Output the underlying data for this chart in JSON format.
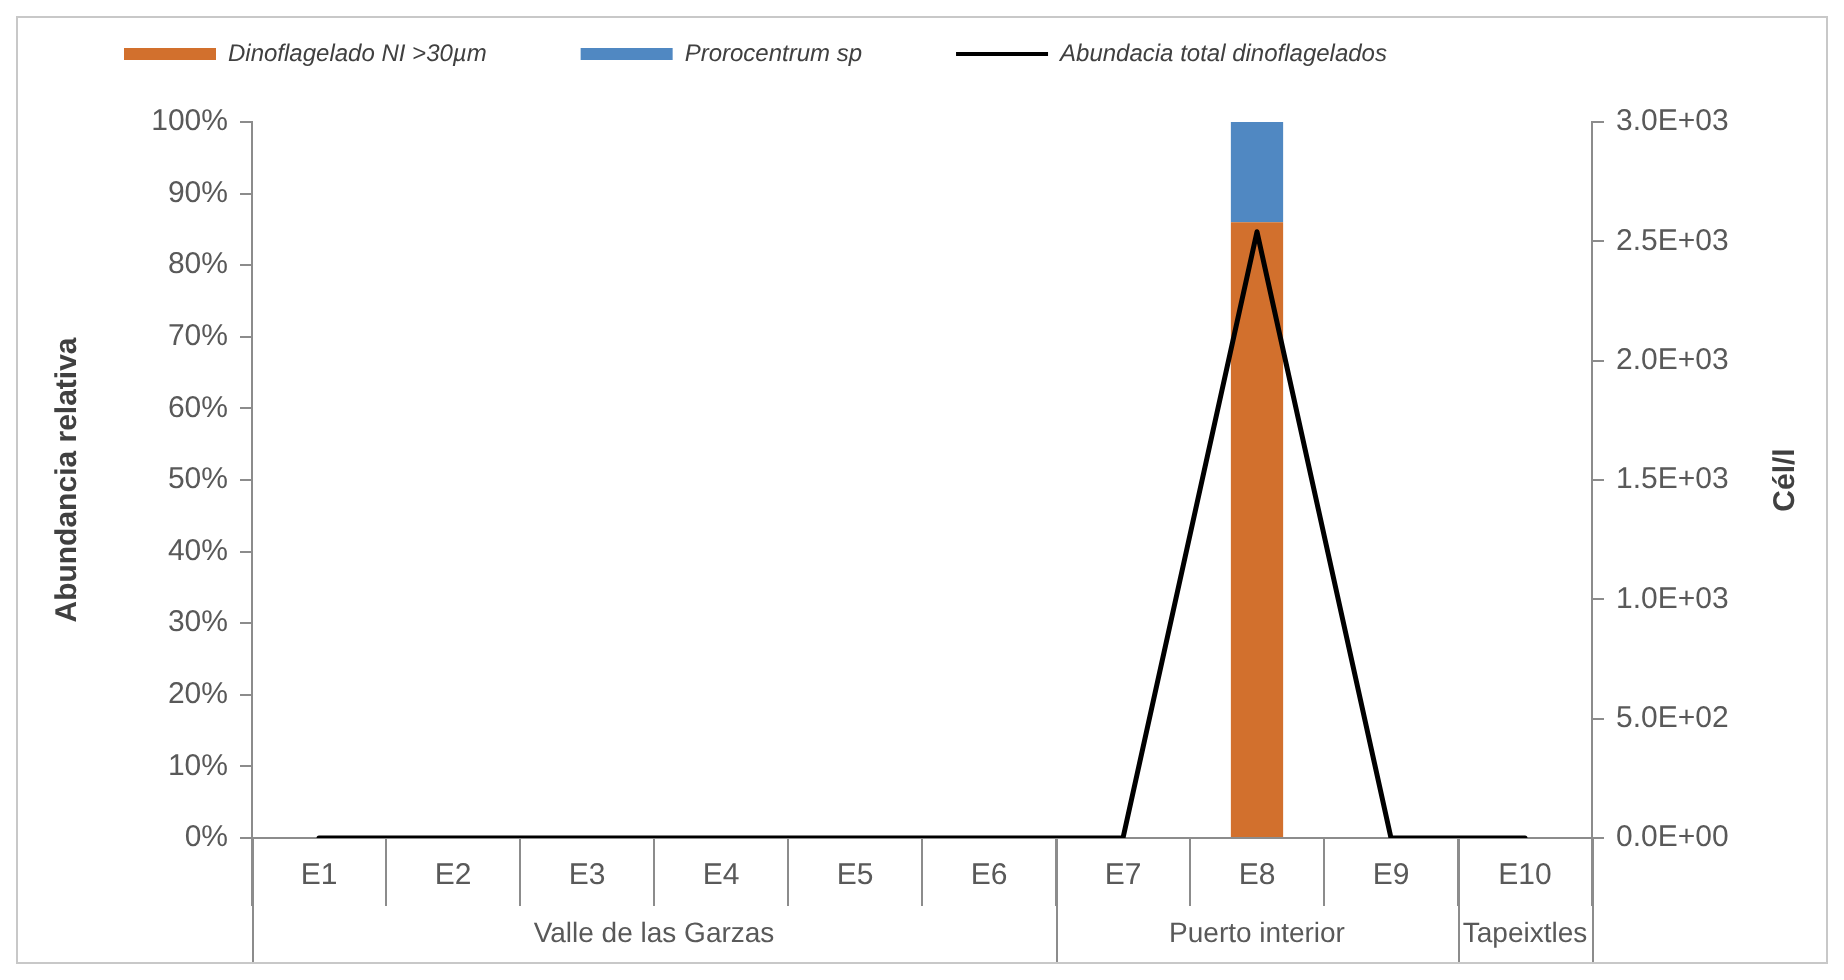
{
  "chart_data": {
    "type": "bar",
    "stacked": true,
    "categories": [
      "E1",
      "E2",
      "E3",
      "E4",
      "E5",
      "E6",
      "E7",
      "E8",
      "E9",
      "E10"
    ],
    "series": [
      {
        "name": "Dinoflagelado NI >30µm",
        "color": "#d2702d",
        "values": [
          null,
          null,
          null,
          null,
          null,
          null,
          null,
          86,
          null,
          null
        ]
      },
      {
        "name": "Prorocentrum sp",
        "color": "#5088c2",
        "values": [
          null,
          null,
          null,
          null,
          null,
          null,
          null,
          14,
          null,
          null
        ]
      },
      {
        "name": "Abundacia total dinoflagelados",
        "type": "line",
        "axis": "y2",
        "color": "#000000",
        "values": [
          0,
          0,
          0,
          0,
          0,
          0,
          0,
          2540,
          0,
          0
        ]
      }
    ],
    "ylabel": "Abundancia relativa",
    "y2label": "Cél/l",
    "ylim": [
      0,
      100
    ],
    "yticks": [
      {
        "value": 0,
        "label": "0%"
      },
      {
        "value": 10,
        "label": "10%"
      },
      {
        "value": 20,
        "label": "20%"
      },
      {
        "value": 30,
        "label": "30%"
      },
      {
        "value": 40,
        "label": "40%"
      },
      {
        "value": 50,
        "label": "50%"
      },
      {
        "value": 60,
        "label": "60%"
      },
      {
        "value": 70,
        "label": "70%"
      },
      {
        "value": 80,
        "label": "80%"
      },
      {
        "value": 90,
        "label": "90%"
      },
      {
        "value": 100,
        "label": "100%"
      }
    ],
    "y2lim": [
      0,
      3000
    ],
    "y2ticks": [
      {
        "value": 0,
        "label": "0.0E+00"
      },
      {
        "value": 500,
        "label": "5.0E+02"
      },
      {
        "value": 1000,
        "label": "1.0E+03"
      },
      {
        "value": 1500,
        "label": "1.5E+03"
      },
      {
        "value": 2000,
        "label": "2.0E+03"
      },
      {
        "value": 2500,
        "label": "2.5E+03"
      },
      {
        "value": 3000,
        "label": "3.0E+03"
      }
    ],
    "annotations": [
      "Valle de las Garzas",
      "Puerto interior",
      "Tapeixtles"
    ],
    "legend": "top",
    "grid": false
  }
}
